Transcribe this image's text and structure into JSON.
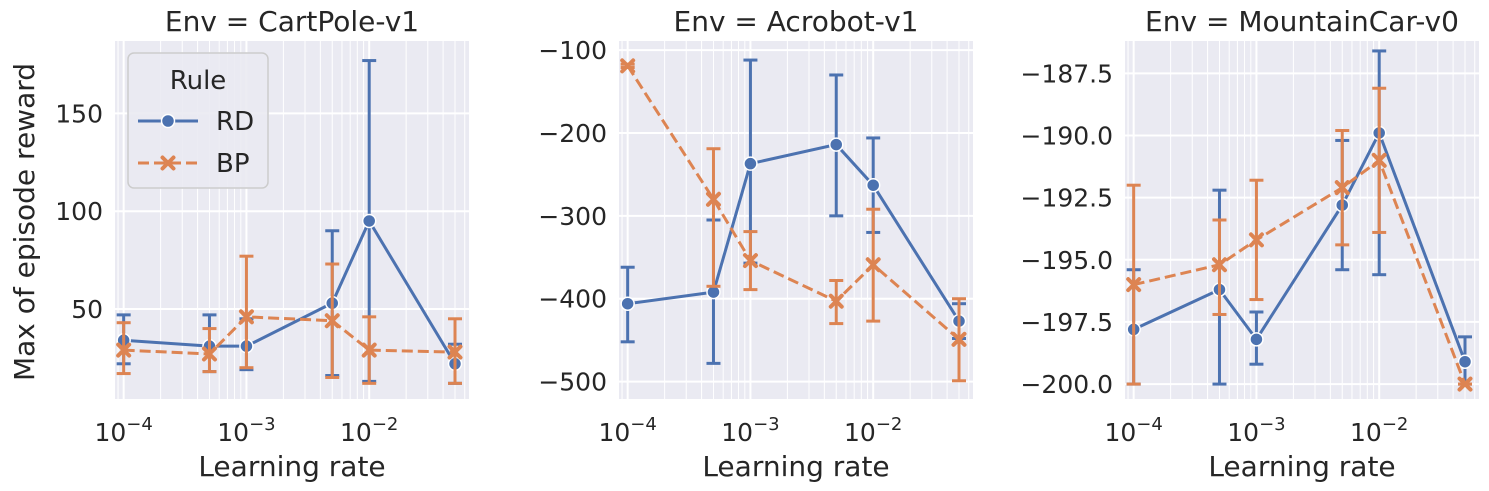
{
  "colors": {
    "RD": "#4c72b0",
    "BP": "#dd8452",
    "panel_bg": "#eaeaf2",
    "grid": "#ffffff",
    "text": "#262626"
  },
  "figure": {
    "ylabel": "Max of episode reward",
    "xlabel": "Learning rate"
  },
  "legend": {
    "title": "Rule",
    "placement": "upper-left (first panel)",
    "entries": [
      {
        "label": "RD",
        "marker": "circle",
        "line": "solid"
      },
      {
        "label": "BP",
        "marker": "x",
        "line": "dashed"
      }
    ]
  },
  "chart_data": [
    {
      "type": "line",
      "title": "Env = CartPole-v1",
      "xlabel": "Learning rate",
      "ylabel": "Max of episode reward",
      "xscale": "log",
      "xlim": [
        8.5e-05,
        0.065
      ],
      "ylim": [
        4,
        187
      ],
      "yticks": [
        50,
        100,
        150
      ],
      "xticks": [
        0.0001,
        0.001,
        0.01
      ],
      "xtick_labels": [
        [
          "10",
          "−4"
        ],
        [
          "10",
          "−3"
        ],
        [
          "10",
          "−2"
        ]
      ],
      "grid": true,
      "series": [
        {
          "name": "RD",
          "x": [
            0.0001,
            0.0005,
            0.001,
            0.005,
            0.01,
            0.05
          ],
          "y": [
            34,
            31,
            31,
            53,
            95,
            22
          ],
          "err_low": [
            22,
            18,
            19,
            16,
            13,
            12
          ],
          "err_high": [
            47,
            47,
            45,
            90,
            177,
            32
          ]
        },
        {
          "name": "BP",
          "x": [
            0.0001,
            0.0005,
            0.001,
            0.005,
            0.01,
            0.05
          ],
          "y": [
            29,
            27,
            46,
            44,
            29,
            28
          ],
          "err_low": [
            17,
            18,
            20,
            15,
            12,
            12
          ],
          "err_high": [
            43,
            40,
            77,
            73,
            46,
            45
          ]
        }
      ]
    },
    {
      "type": "line",
      "title": "Env = Acrobot-v1",
      "xlabel": "Learning rate",
      "ylabel": "",
      "xscale": "log",
      "xlim": [
        8.5e-05,
        0.065
      ],
      "ylim": [
        -521,
        -89
      ],
      "yticks": [
        -500,
        -400,
        -300,
        -200,
        -100
      ],
      "xticks": [
        0.0001,
        0.001,
        0.01
      ],
      "xtick_labels": [
        [
          "10",
          "−4"
        ],
        [
          "10",
          "−3"
        ],
        [
          "10",
          "−2"
        ]
      ],
      "grid": true,
      "series": [
        {
          "name": "RD",
          "x": [
            0.0001,
            0.0005,
            0.001,
            0.005,
            0.01,
            0.05
          ],
          "y": [
            -406,
            -392,
            -237,
            -214,
            -263,
            -427
          ],
          "err_low": [
            -452,
            -478,
            -357,
            -300,
            -320,
            -448
          ],
          "err_high": [
            -362,
            -305,
            -112,
            -130,
            -206,
            -406
          ]
        },
        {
          "name": "BP",
          "x": [
            0.0001,
            0.0005,
            0.001,
            0.005,
            0.01,
            0.05
          ],
          "y": [
            -119,
            -280,
            -354,
            -403,
            -359,
            -449
          ],
          "err_low": [
            -121,
            -385,
            -389,
            -430,
            -427,
            -499
          ],
          "err_high": [
            -117,
            -219,
            -319,
            -378,
            -292,
            -400
          ]
        }
      ]
    },
    {
      "type": "line",
      "title": "Env = MountainCar-v0",
      "xlabel": "Learning rate",
      "ylabel": "",
      "xscale": "log",
      "xlim": [
        8.5e-05,
        0.065
      ],
      "ylim": [
        -200.6,
        -186.2
      ],
      "yticks": [
        -200.0,
        -197.5,
        -195.0,
        -192.5,
        -190.0,
        -187.5
      ],
      "ytick_labels": [
        "−200.0",
        "−197.5",
        "−195.0",
        "−192.5",
        "−190.0",
        "−187.5"
      ],
      "xticks": [
        0.0001,
        0.001,
        0.01
      ],
      "xtick_labels": [
        [
          "10",
          "−4"
        ],
        [
          "10",
          "−3"
        ],
        [
          "10",
          "−2"
        ]
      ],
      "grid": true,
      "series": [
        {
          "name": "RD",
          "x": [
            0.0001,
            0.0005,
            0.001,
            0.005,
            0.01,
            0.05
          ],
          "y": [
            -197.8,
            -196.2,
            -198.2,
            -192.8,
            -189.9,
            -199.1
          ],
          "err_low": [
            -200.0,
            -200.0,
            -199.2,
            -195.4,
            -195.6,
            -200.0
          ],
          "err_high": [
            -195.4,
            -192.2,
            -197.1,
            -190.2,
            -186.6,
            -198.1
          ]
        },
        {
          "name": "BP",
          "x": [
            0.0001,
            0.0005,
            0.001,
            0.005,
            0.01,
            0.05
          ],
          "y": [
            -196.0,
            -195.2,
            -194.2,
            -192.1,
            -191.0,
            -200.0
          ],
          "err_low": [
            -200.0,
            -197.2,
            -196.6,
            -194.4,
            -193.9,
            -200.0
          ],
          "err_high": [
            -192.0,
            -193.4,
            -191.8,
            -189.8,
            -188.1,
            -200.0
          ]
        }
      ]
    }
  ]
}
